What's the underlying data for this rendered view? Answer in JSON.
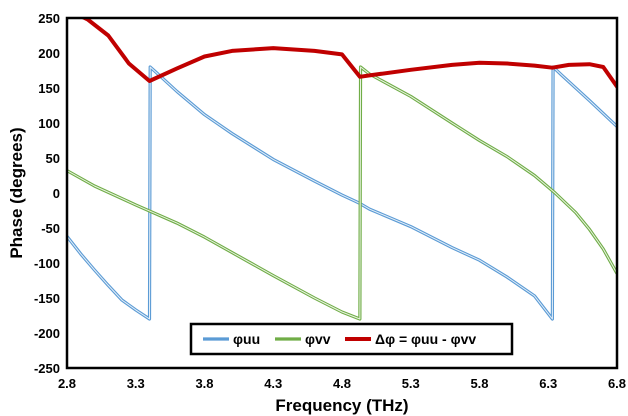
{
  "chart_data": {
    "type": "line",
    "xlabel": "Frequency (THz)",
    "ylabel": "Phase (degrees)",
    "xlim": [
      2.8,
      6.8
    ],
    "ylim": [
      -250,
      250
    ],
    "xticks": [
      "2.8",
      "3.3",
      "3.8",
      "4.3",
      "4.8",
      "5.3",
      "5.8",
      "6.3",
      "6.8"
    ],
    "yticks": [
      "250",
      "200",
      "150",
      "100",
      "50",
      "0",
      "-50",
      "-100",
      "-150",
      "-200",
      "-250"
    ],
    "grid": false,
    "legend_position": "bottom-center",
    "series": [
      {
        "name": "φuu",
        "color": "#5b9bd5",
        "x": [
          2.8,
          2.9,
          3.0,
          3.1,
          3.2,
          3.3,
          3.4,
          3.405,
          3.45,
          3.6,
          3.8,
          4.0,
          4.3,
          4.6,
          4.8,
          4.9,
          4.93,
          5.0,
          5.3,
          5.6,
          5.8,
          6.0,
          6.2,
          6.33,
          6.335,
          6.4,
          6.6,
          6.8
        ],
        "y": [
          -62,
          -87,
          -110,
          -132,
          -153,
          -167,
          -180,
          180,
          172,
          145,
          112,
          85,
          48,
          17,
          -3,
          -12,
          -15,
          -23,
          -48,
          -78,
          -96,
          -120,
          -147,
          -180,
          180,
          168,
          132,
          95
        ]
      },
      {
        "name": "φvv",
        "color": "#70ad47",
        "x": [
          2.8,
          3.0,
          3.3,
          3.6,
          3.8,
          4.0,
          4.3,
          4.6,
          4.8,
          4.93,
          4.935,
          5.0,
          5.3,
          5.6,
          5.8,
          6.0,
          6.2,
          6.35,
          6.5,
          6.6,
          6.7,
          6.8
        ],
        "y": [
          32,
          10,
          -17,
          -43,
          -63,
          -85,
          -118,
          -150,
          -170,
          -180,
          180,
          170,
          138,
          100,
          75,
          52,
          25,
          0,
          -28,
          -52,
          -80,
          -115
        ]
      },
      {
        "name": "Δφ = φuu - φvv",
        "color": "#c00000",
        "x": [
          2.8,
          2.95,
          3.1,
          3.25,
          3.4,
          3.6,
          3.8,
          4.0,
          4.3,
          4.6,
          4.8,
          4.93,
          5.0,
          5.3,
          5.6,
          5.8,
          6.0,
          6.2,
          6.33,
          6.45,
          6.6,
          6.7,
          6.8
        ],
        "y": [
          262,
          248,
          225,
          185,
          160,
          178,
          195,
          203,
          207,
          203,
          198,
          166,
          168,
          176,
          183,
          186,
          185,
          182,
          179,
          183,
          184,
          180,
          152
        ]
      }
    ]
  }
}
